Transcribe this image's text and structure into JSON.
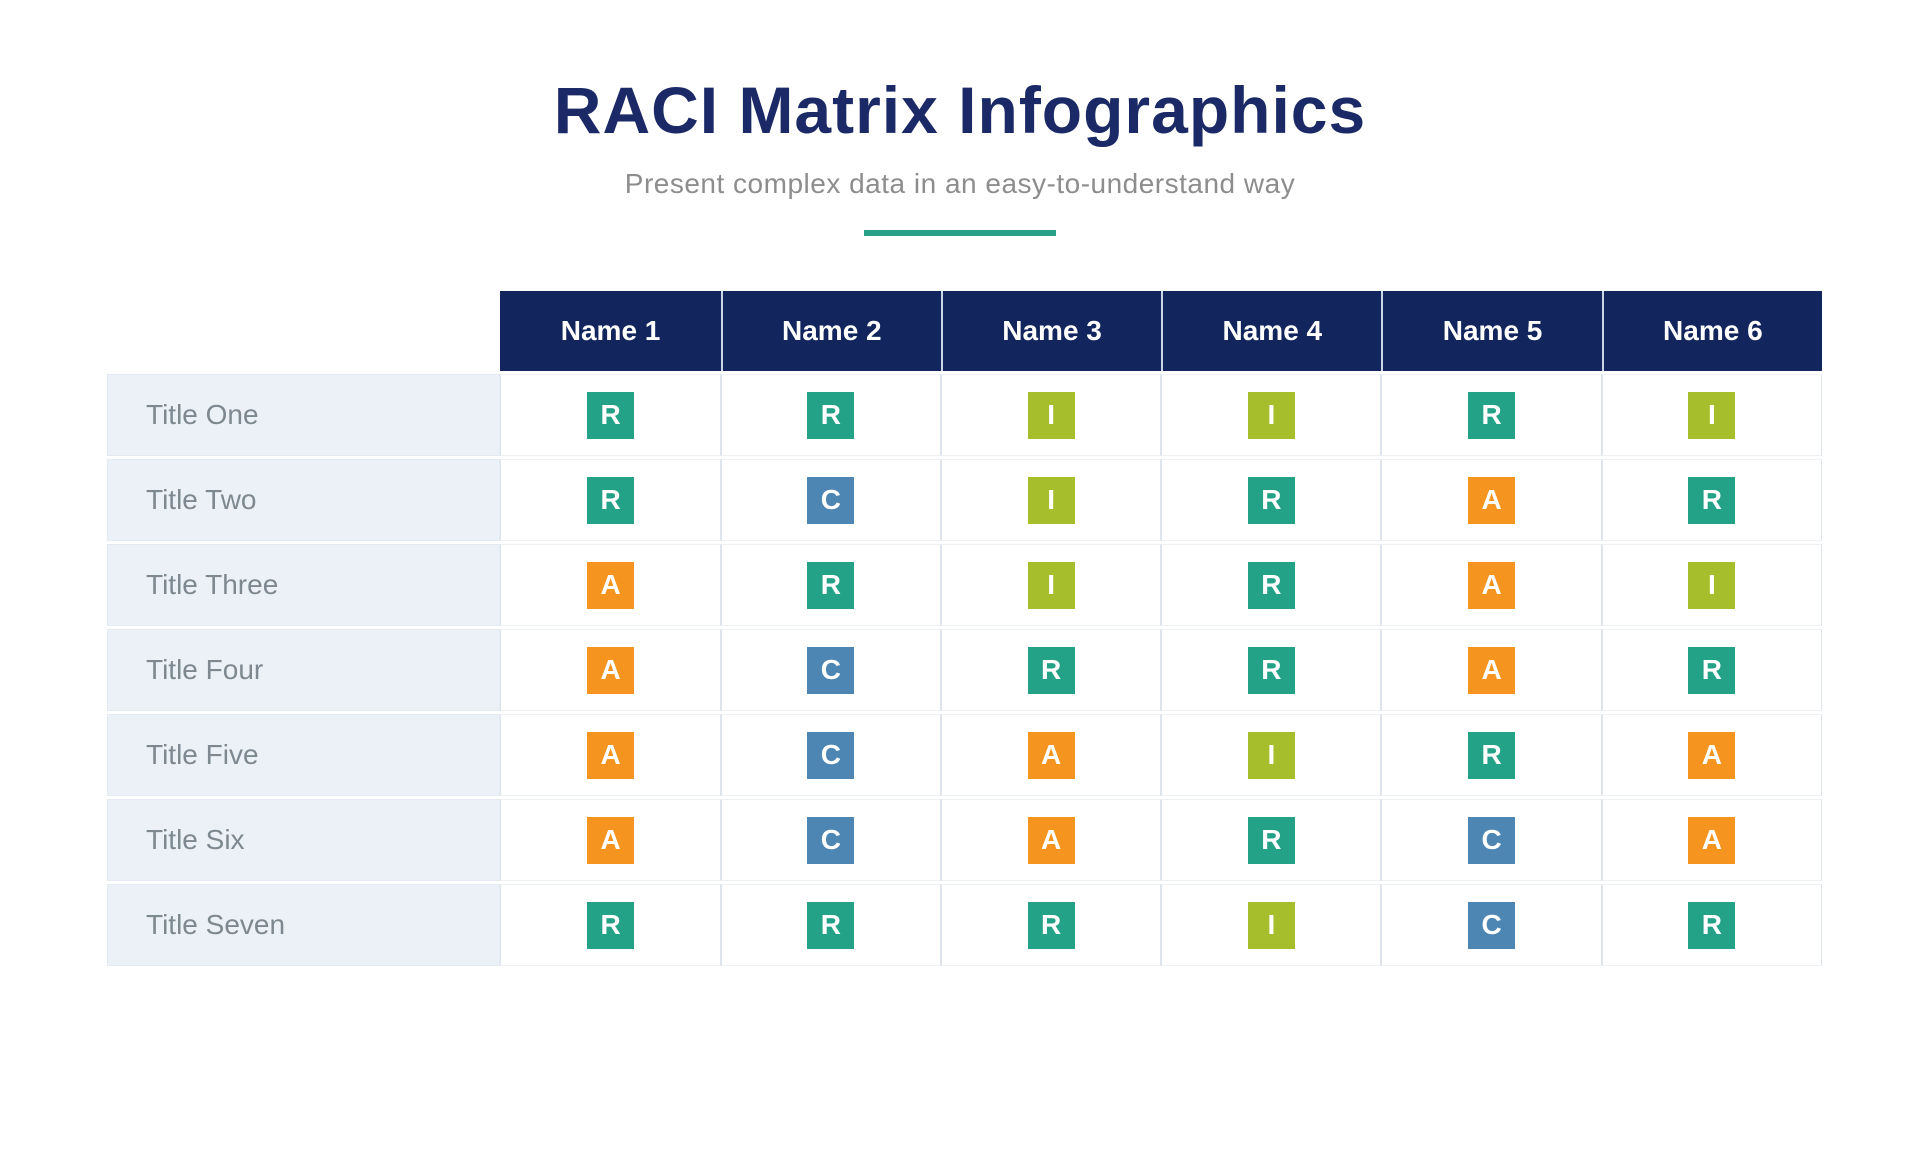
{
  "page": {
    "title": "RACI Matrix Infographics",
    "subtitle": "Present complex data in an easy-to-understand way"
  },
  "colors": {
    "title_navy": "#1B2A66",
    "header_navy": "#12255C",
    "subtitle_gray": "#8D8D8D",
    "divider_teal": "#29A287",
    "row_label_bg": "#ECF1F7",
    "row_label_text": "#7E8890"
  },
  "chart_data": {
    "type": "table",
    "title": "RACI Matrix Infographics",
    "subtitle": "Present complex data in an easy-to-understand way",
    "columns": [
      "Name 1",
      "Name 2",
      "Name 3",
      "Name 4",
      "Name 5",
      "Name 6"
    ],
    "rows": [
      {
        "label": "Title One",
        "values": [
          "R",
          "R",
          "I",
          "I",
          "R",
          "I"
        ]
      },
      {
        "label": "Title Two",
        "values": [
          "R",
          "C",
          "I",
          "R",
          "A",
          "R"
        ]
      },
      {
        "label": "Title Three",
        "values": [
          "A",
          "R",
          "I",
          "R",
          "A",
          "I"
        ]
      },
      {
        "label": "Title Four",
        "values": [
          "A",
          "C",
          "R",
          "R",
          "A",
          "R"
        ]
      },
      {
        "label": "Title Five",
        "values": [
          "A",
          "C",
          "A",
          "I",
          "R",
          "A"
        ]
      },
      {
        "label": "Title Six",
        "values": [
          "A",
          "C",
          "A",
          "R",
          "C",
          "A"
        ]
      },
      {
        "label": "Title Seven",
        "values": [
          "R",
          "R",
          "R",
          "I",
          "C",
          "R"
        ]
      }
    ],
    "value_colors": {
      "R": "#23A287",
      "A": "#F5941E",
      "C": "#4E86B3",
      "I": "#A6BE2B"
    },
    "legend_position": "none",
    "grid": true
  }
}
